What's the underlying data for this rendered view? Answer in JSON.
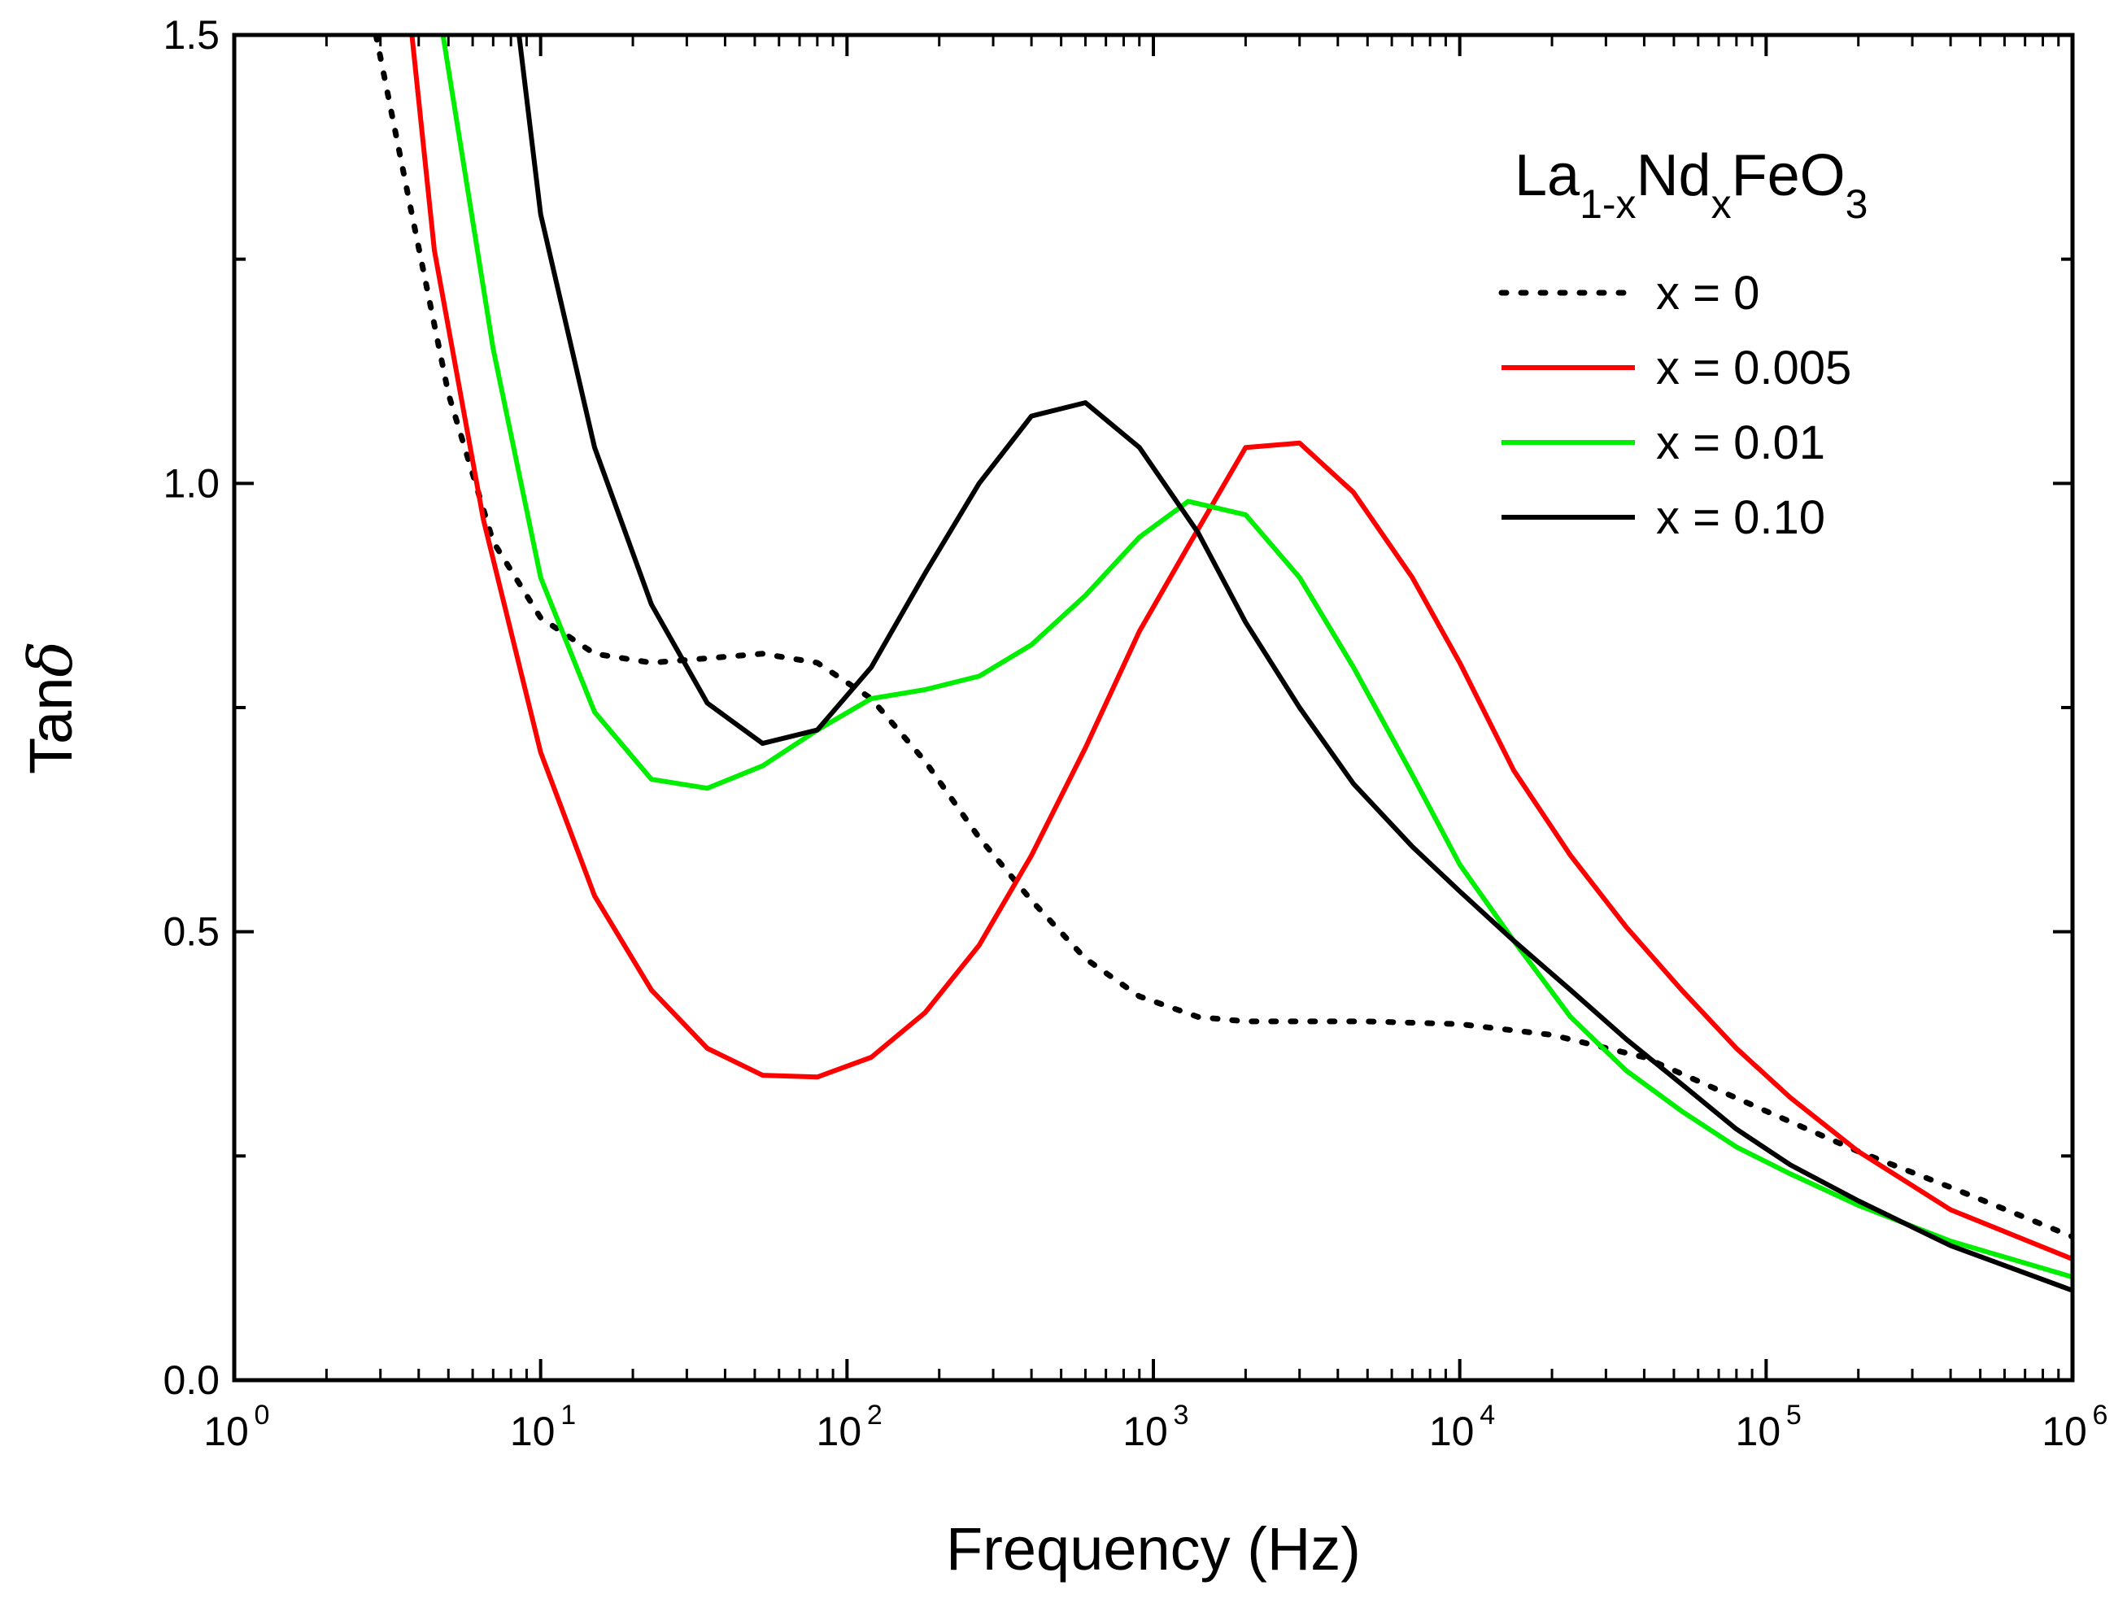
{
  "chart_data": {
    "type": "line",
    "xlabel": "Frequency (Hz)",
    "ylabel_main": "Tan",
    "ylabel_symbol": "δ",
    "xscale": "log",
    "xlim": [
      1,
      1000000
    ],
    "ylim": [
      0.0,
      1.5
    ],
    "ytick_labels": [
      "0.0",
      "0.5",
      "1.0",
      "1.5"
    ],
    "xtick_base": "10",
    "xtick_exponents": [
      "0",
      "1",
      "2",
      "3",
      "4",
      "5",
      "6"
    ],
    "legend_placement": "top-right",
    "legend_title": {
      "a": "La",
      "a_sub": "1-x",
      "b": "Nd",
      "b_sub": "x",
      "c": "FeO",
      "c_sub": "3"
    },
    "series": [
      {
        "name": "x = 0",
        "color": "#000000",
        "style": "dotted",
        "x": [
          2.9,
          3.8,
          5,
          7,
          10,
          15,
          23,
          35,
          53,
          80,
          120,
          180,
          270,
          400,
          600,
          900,
          1400,
          2000,
          3000,
          5000,
          10000,
          20000,
          40000,
          100000,
          200000,
          400000,
          1000000
        ],
        "y": [
          1.5,
          1.3,
          1.1,
          0.935,
          0.85,
          0.81,
          0.8,
          0.805,
          0.81,
          0.8,
          0.76,
          0.69,
          0.605,
          0.535,
          0.47,
          0.428,
          0.405,
          0.4,
          0.4,
          0.4,
          0.397,
          0.385,
          0.36,
          0.3,
          0.255,
          0.215,
          0.16
        ]
      },
      {
        "name": "x = 0.005",
        "color": "#ff0000",
        "style": "solid",
        "x": [
          3.8,
          4.5,
          6.5,
          10,
          15,
          23,
          35,
          53,
          80,
          120,
          180,
          270,
          400,
          600,
          900,
          1300,
          2000,
          3000,
          4500,
          7000,
          10000,
          15000,
          23000,
          35000,
          53000,
          80000,
          120000,
          200000,
          400000,
          1000000
        ],
        "y": [
          1.5,
          1.26,
          0.96,
          0.7,
          0.54,
          0.435,
          0.37,
          0.34,
          0.338,
          0.36,
          0.41,
          0.485,
          0.585,
          0.705,
          0.835,
          0.93,
          1.04,
          1.045,
          0.99,
          0.895,
          0.8,
          0.68,
          0.585,
          0.505,
          0.435,
          0.37,
          0.315,
          0.255,
          0.19,
          0.135
        ]
      },
      {
        "name": "x = 0.01",
        "color": "#00ee00",
        "style": "solid",
        "x": [
          4.8,
          7,
          10,
          15,
          23,
          35,
          53,
          80,
          120,
          180,
          270,
          400,
          600,
          900,
          1300,
          2000,
          3000,
          4500,
          7000,
          10000,
          15000,
          23000,
          35000,
          53000,
          80000,
          120000,
          200000,
          400000,
          1000000
        ],
        "y": [
          1.5,
          1.15,
          0.895,
          0.745,
          0.67,
          0.66,
          0.685,
          0.725,
          0.76,
          0.77,
          0.785,
          0.82,
          0.875,
          0.94,
          0.98,
          0.965,
          0.895,
          0.795,
          0.675,
          0.575,
          0.49,
          0.405,
          0.345,
          0.3,
          0.26,
          0.23,
          0.195,
          0.155,
          0.115
        ]
      },
      {
        "name": "x = 0.10",
        "color": "#000000",
        "style": "solid",
        "x": [
          8.5,
          10,
          15,
          23,
          35,
          53,
          80,
          120,
          180,
          270,
          400,
          600,
          900,
          1400,
          2000,
          3000,
          4500,
          7000,
          10000,
          15000,
          23000,
          35000,
          53000,
          80000,
          120000,
          200000,
          400000,
          1000000
        ],
        "y": [
          1.5,
          1.3,
          1.04,
          0.865,
          0.755,
          0.71,
          0.725,
          0.795,
          0.9,
          1.0,
          1.075,
          1.09,
          1.04,
          0.945,
          0.845,
          0.75,
          0.665,
          0.595,
          0.545,
          0.49,
          0.435,
          0.38,
          0.33,
          0.28,
          0.24,
          0.2,
          0.15,
          0.1
        ]
      }
    ]
  }
}
